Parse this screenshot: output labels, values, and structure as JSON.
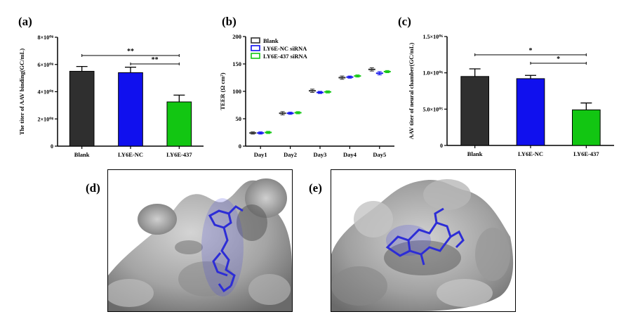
{
  "panels": {
    "a": "(a)",
    "b": "(b)",
    "c": "(c)",
    "d": "(d)",
    "e": "(e)"
  },
  "colors": {
    "blank": "#2f2f2f",
    "nc": "#1010ee",
    "ly437": "#12c612",
    "surface": "#9e9e9e",
    "ligand": "#2d2dd6"
  },
  "chart_data": [
    {
      "id": "a",
      "type": "bar",
      "categories": [
        "Blank",
        "LY6E-NC",
        "LY6E-437"
      ],
      "values": [
        550000000.0,
        540000000.0,
        325000000.0
      ],
      "errors": [
        35000000.0,
        40000000.0,
        50000000.0
      ],
      "ylabel": "The titer of AAV binding(GC/mL)",
      "ylim": [
        0,
        800000000.0
      ],
      "yticks": [
        0,
        200000000.0,
        400000000.0,
        600000000.0,
        800000000.0
      ],
      "ytick_labels": [
        "0",
        "2×10⁰⁸",
        "4×10⁰⁸",
        "6×10⁰⁸",
        "8×10⁰⁸"
      ],
      "significance": [
        {
          "from": 0,
          "to": 2,
          "label": "**"
        },
        {
          "from": 1,
          "to": 2,
          "label": "**"
        }
      ]
    },
    {
      "id": "b",
      "type": "scatter",
      "categories": [
        "Day1",
        "Day2",
        "Day3",
        "Day4",
        "Day5"
      ],
      "ylabel": "TEER (Ω cm²)",
      "ylim": [
        0,
        200
      ],
      "yticks": [
        0,
        50,
        100,
        150,
        200
      ],
      "legend_position": "top-left",
      "series": [
        {
          "name": "Blank",
          "values": [
            24,
            60,
            101,
            125,
            140
          ],
          "errors": [
            2,
            3,
            3,
            3,
            3
          ]
        },
        {
          "name": "LY6E-NC siRNA",
          "values": [
            24,
            60,
            98,
            126,
            133
          ],
          "errors": [
            2,
            2,
            2,
            2,
            3
          ]
        },
        {
          "name": "LY6E-437 siRNA",
          "values": [
            25,
            61,
            99,
            128,
            136
          ],
          "errors": [
            2,
            2,
            2,
            2,
            2
          ]
        }
      ]
    },
    {
      "id": "c",
      "type": "bar",
      "categories": [
        "Blank",
        "LY6E-NC",
        "LY6E-437"
      ],
      "values": [
        950000.0,
        920000.0,
        490000.0
      ],
      "errors": [
        105000.0,
        45000.0,
        95000.0
      ],
      "ylabel": "AAV titer of neural chamber(GC/mL)",
      "ylim": [
        0,
        1500000.0
      ],
      "yticks": [
        0,
        500000.0,
        1000000.0,
        1500000.0
      ],
      "ytick_labels": [
        "0",
        "5.0×10⁰⁵",
        "1.0×10⁰⁶",
        "1.5×10⁰⁶"
      ],
      "significance": [
        {
          "from": 0,
          "to": 2,
          "label": "*"
        },
        {
          "from": 1,
          "to": 2,
          "label": "*"
        }
      ]
    }
  ]
}
